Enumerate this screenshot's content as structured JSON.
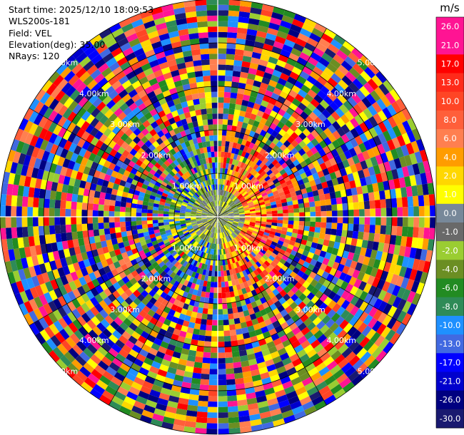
{
  "header": {
    "start_time": "Start time: 2025/12/10 18:09:53",
    "instrument": "WLS200s-181",
    "field": "Field: VEL",
    "elevation": "Elevation(deg): 35.00",
    "nrays": "NRays: 120"
  },
  "range_rings": {
    "labels": [
      "1.00km",
      "2.00km",
      "3.00km",
      "4.00km",
      "5.00km"
    ]
  },
  "colorbar": {
    "unit": "m/s",
    "ticks": [
      "26.0",
      "21.0",
      "17.0",
      "13.0",
      "10.0",
      "8.0",
      "6.0",
      "4.0",
      "2.0",
      "1.0",
      "0.0",
      "-1.0",
      "-2.0",
      "-4.0",
      "-6.0",
      "-8.0",
      "-10.0",
      "-13.0",
      "-17.0",
      "-21.0",
      "-26.0",
      "-30.0"
    ],
    "colors": [
      "#ff1493",
      "#ff1493",
      "#ff0000",
      "#ff2a1a",
      "#ff4525",
      "#ff5f3a",
      "#ff7f50",
      "#ff9c00",
      "#ffd700",
      "#ffff00",
      "#778899",
      "#696969",
      "#9acd32",
      "#6b8e23",
      "#228b22",
      "#2e8b57",
      "#1e90ff",
      "#4169e1",
      "#0000ff",
      "#0000cd",
      "#000080",
      "#191970"
    ]
  }
}
